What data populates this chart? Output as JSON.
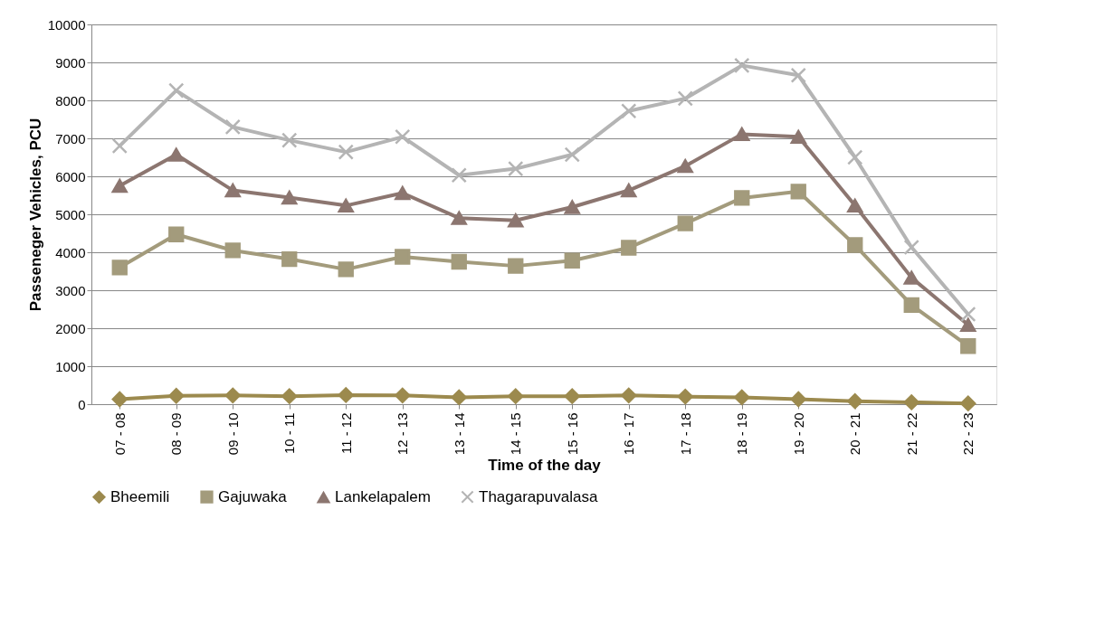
{
  "chart_data": {
    "type": "line",
    "xlabel": "Time of the day",
    "ylabel": "Passeneger Vehicles, PCU",
    "categories": [
      "07 - 08",
      "08 - 09",
      "09 - 10",
      "10 - 11",
      "11 - 12",
      "12 - 13",
      "13 - 14",
      "14 - 15",
      "15 - 16",
      "16 - 17",
      "17 - 18",
      "18 - 19",
      "19 - 20",
      "20 - 21",
      "21 - 22",
      "22 - 23"
    ],
    "series": [
      {
        "name": "Bheemili",
        "color": "#9c8a4e",
        "marker": "diamond",
        "values": [
          130,
          220,
          230,
          210,
          240,
          230,
          180,
          210,
          210,
          230,
          200,
          180,
          130,
          80,
          50,
          20
        ]
      },
      {
        "name": "Gajuwaka",
        "color": "#a39b7c",
        "marker": "square",
        "values": [
          3600,
          4470,
          4050,
          3820,
          3550,
          3880,
          3750,
          3640,
          3780,
          4120,
          4760,
          5430,
          5600,
          4190,
          2610,
          1530
        ]
      },
      {
        "name": "Lankelapalem",
        "color": "#8c7670",
        "marker": "triangle",
        "values": [
          5750,
          6570,
          5630,
          5440,
          5230,
          5560,
          4900,
          4840,
          5190,
          5630,
          6270,
          7110,
          7040,
          5230,
          3330,
          2090
        ]
      },
      {
        "name": "Thagarapuvalasa",
        "color": "#b4b4b4",
        "marker": "cross",
        "values": [
          6800,
          8260,
          7300,
          6950,
          6640,
          7040,
          6030,
          6200,
          6570,
          7720,
          8050,
          8920,
          8660,
          6500,
          4130,
          2370
        ]
      }
    ],
    "ylim": [
      0,
      10000
    ],
    "yticks": [
      0,
      1000,
      2000,
      3000,
      4000,
      5000,
      6000,
      7000,
      8000,
      9000,
      10000
    ],
    "grid": "y",
    "legend": "bottom",
    "line_style": "solid"
  }
}
